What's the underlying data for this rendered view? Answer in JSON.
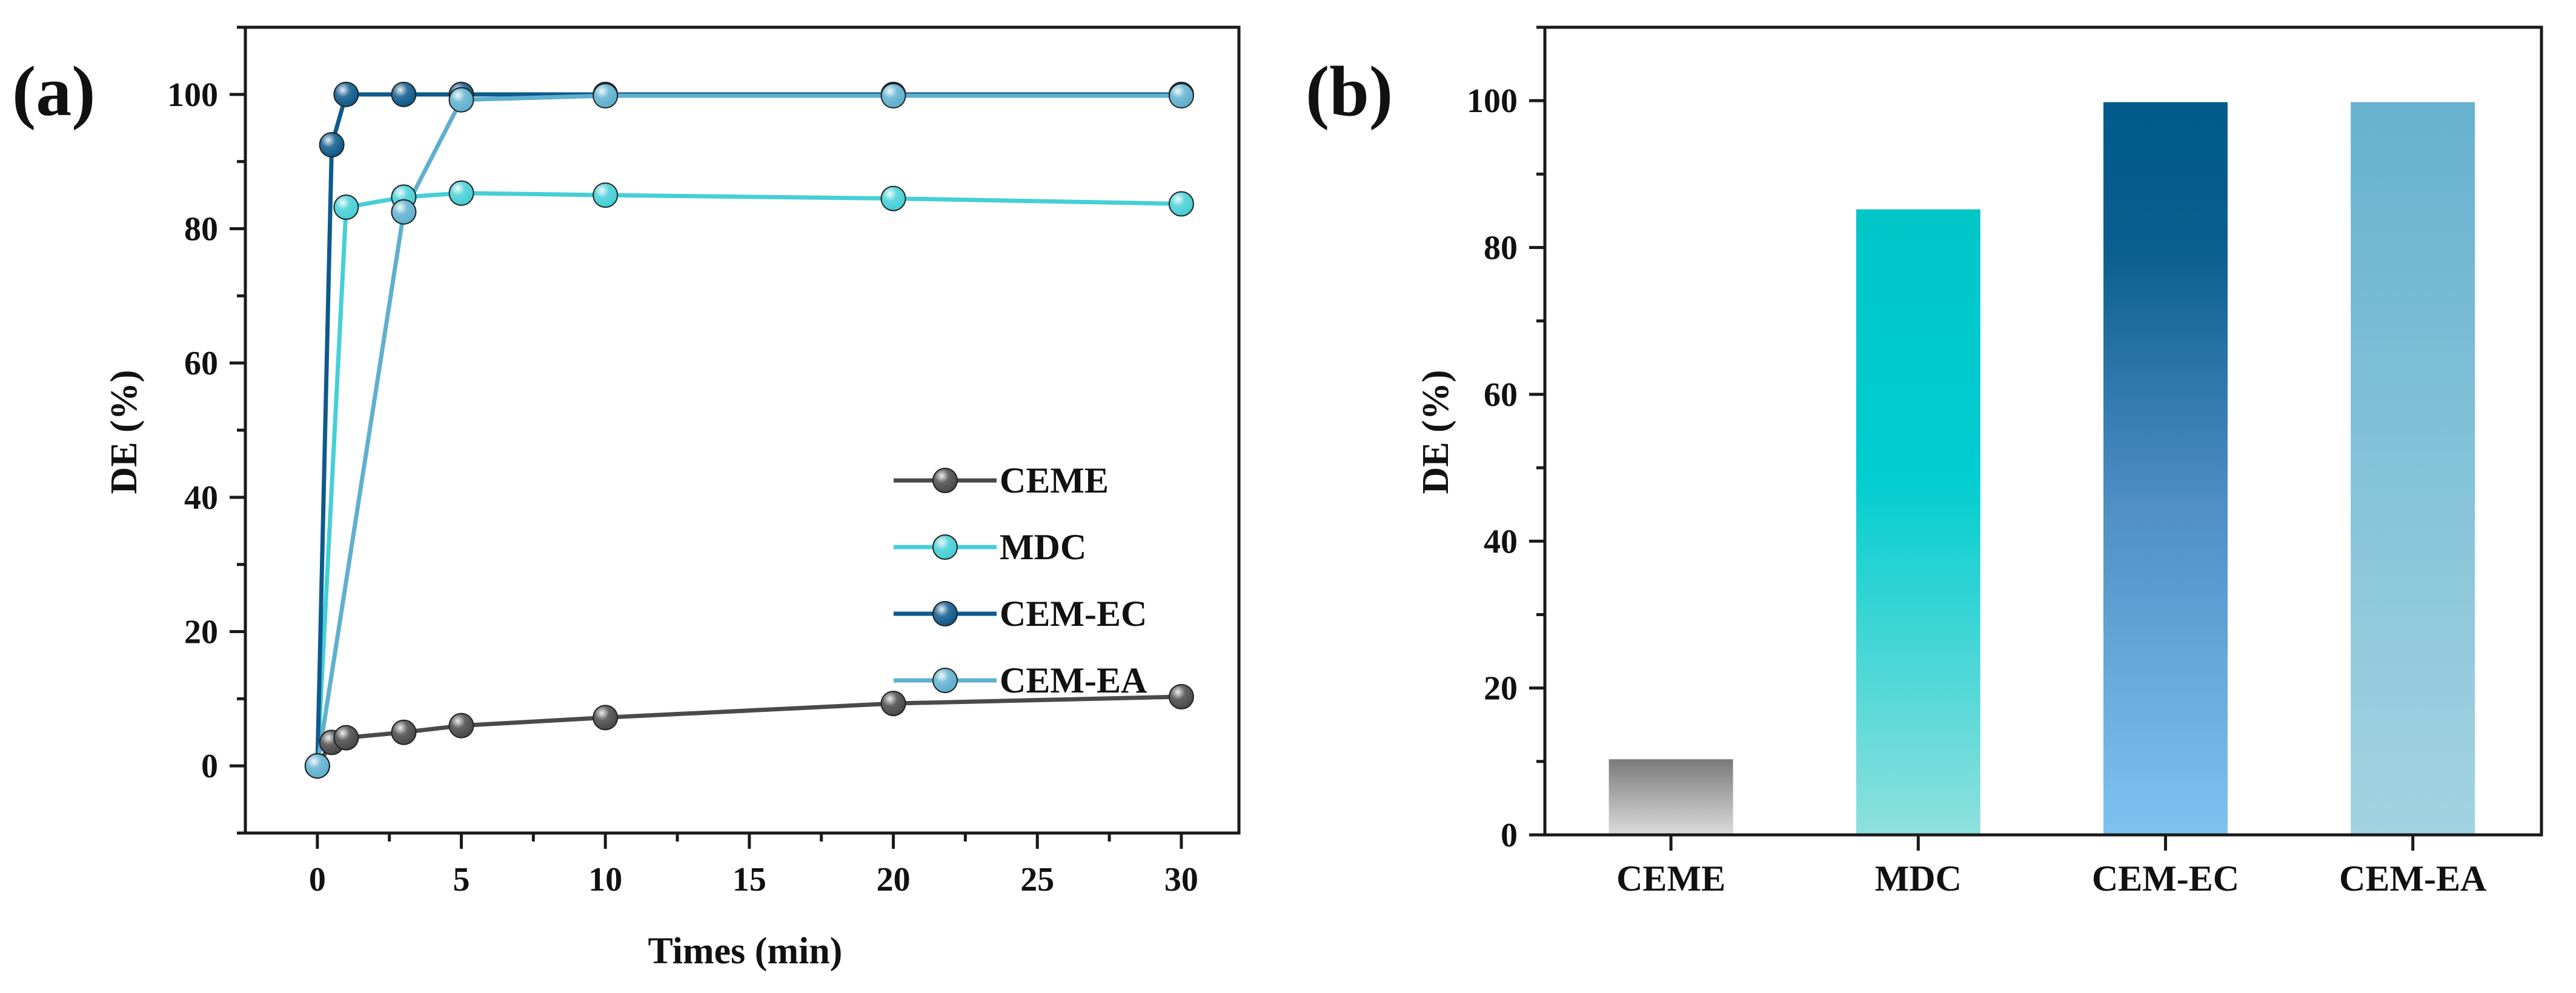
{
  "colors": {
    "CEME": "#4a4a4a",
    "MDC": "#45cfd6",
    "CEM-EC": "#0e5a8c",
    "CEM-EA": "#5fb0cf"
  },
  "chart_data": [
    {
      "type": "line",
      "panel_label": "(a)",
      "xlabel": "Times (min)",
      "ylabel": "DE (%)",
      "xlim": [
        -2.5,
        32
      ],
      "ylim": [
        -10,
        110
      ],
      "xticks": [
        0,
        5,
        10,
        15,
        20,
        25,
        30
      ],
      "yticks": [
        0,
        20,
        40,
        60,
        80,
        100
      ],
      "legend_position": "center-right",
      "series": [
        {
          "name": "CEME",
          "x": [
            0,
            0.5,
            1,
            3,
            5,
            10,
            20,
            30
          ],
          "y": [
            0,
            3.5,
            4.2,
            5,
            6,
            7.2,
            9.3,
            10.3
          ]
        },
        {
          "name": "MDC",
          "x": [
            0,
            1,
            3,
            5,
            10,
            20,
            30
          ],
          "y": [
            0,
            83.2,
            84.7,
            85.3,
            85,
            84.5,
            83.7
          ]
        },
        {
          "name": "CEM-EC",
          "x": [
            0,
            0.5,
            1,
            3,
            5,
            10,
            20,
            30
          ],
          "y": [
            0,
            92.5,
            100,
            100,
            100,
            100,
            100,
            100
          ]
        },
        {
          "name": "CEM-EA",
          "x": [
            0,
            3,
            5,
            10,
            20,
            30
          ],
          "y": [
            0,
            82.5,
            99.2,
            99.8,
            99.8,
            99.8
          ]
        }
      ]
    },
    {
      "type": "bar",
      "panel_label": "(b)",
      "xlabel": "",
      "ylabel": "DE (%)",
      "ylim": [
        0,
        110
      ],
      "yticks": [
        0,
        20,
        40,
        60,
        80,
        100
      ],
      "categories": [
        "CEME",
        "MDC",
        "CEM-EC",
        "CEM-EA"
      ],
      "values": [
        10.3,
        85.2,
        99.8,
        99.8
      ]
    }
  ]
}
